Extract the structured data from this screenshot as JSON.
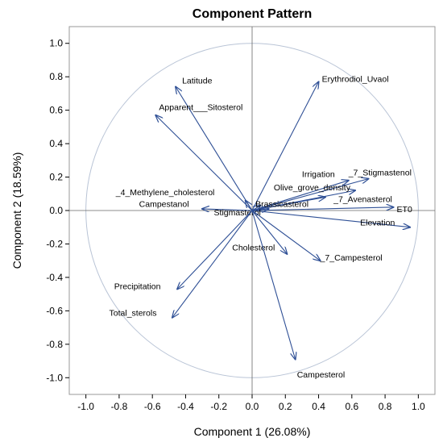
{
  "chart_data": {
    "type": "scatter",
    "title": "Component Pattern",
    "xlabel": "Component 1 (26.08%)",
    "ylabel": "Component 2 (18.59%)",
    "xlim": [
      -1.1,
      1.1
    ],
    "ylim": [
      -1.1,
      1.1
    ],
    "xticks": [
      "-1.0",
      "-0.8",
      "-0.6",
      "-0.4",
      "-0.2",
      "0.0",
      "0.2",
      "0.4",
      "0.6",
      "0.8",
      "1.0"
    ],
    "yticks": [
      "1.0",
      "0.8",
      "0.6",
      "0.4",
      "0.2",
      "0.0",
      "-0.2",
      "-0.4",
      "-0.6",
      "-0.8",
      "-1.0"
    ],
    "unit_circle": true,
    "vectors": [
      {
        "name": "Latitude",
        "x": -0.46,
        "y": 0.74
      },
      {
        "name": "Apparent___Sitosterol",
        "x": -0.58,
        "y": 0.57
      },
      {
        "name": "Erythrodiol_Uvaol",
        "x": 0.4,
        "y": 0.77
      },
      {
        "name": "Irrigation",
        "x": 0.58,
        "y": 0.18
      },
      {
        "name": "_7_Stigmastenol",
        "x": 0.7,
        "y": 0.19
      },
      {
        "name": "Olive_grove_density",
        "x": 0.62,
        "y": 0.12
      },
      {
        "name": "_7_Avenasterol",
        "x": 0.44,
        "y": 0.08
      },
      {
        "name": "Brassicasterol",
        "x": 0.05,
        "y": 0.03
      },
      {
        "name": "ET0",
        "x": 0.85,
        "y": 0.02
      },
      {
        "name": "Elevation",
        "x": 0.95,
        "y": -0.1
      },
      {
        "name": "_4_Methylene_cholesterol",
        "x": -0.04,
        "y": 0.06
      },
      {
        "name": "Campestanol",
        "x": -0.3,
        "y": 0.01
      },
      {
        "name": "Stigmasterol",
        "x": 0.1,
        "y": 0.01
      },
      {
        "name": "Cholesterol",
        "x": 0.21,
        "y": -0.26
      },
      {
        "name": "_7_Campesterol",
        "x": 0.41,
        "y": -0.3
      },
      {
        "name": "Precipitation",
        "x": -0.45,
        "y": -0.47
      },
      {
        "name": "Total_sterols",
        "x": -0.48,
        "y": -0.64
      },
      {
        "name": "Campesterol",
        "x": 0.26,
        "y": -0.89
      }
    ]
  },
  "colors": {
    "arrow": "#2e4f95",
    "circle": "#b9c4d6",
    "frame": "#999999",
    "zero_line": "#666666"
  }
}
